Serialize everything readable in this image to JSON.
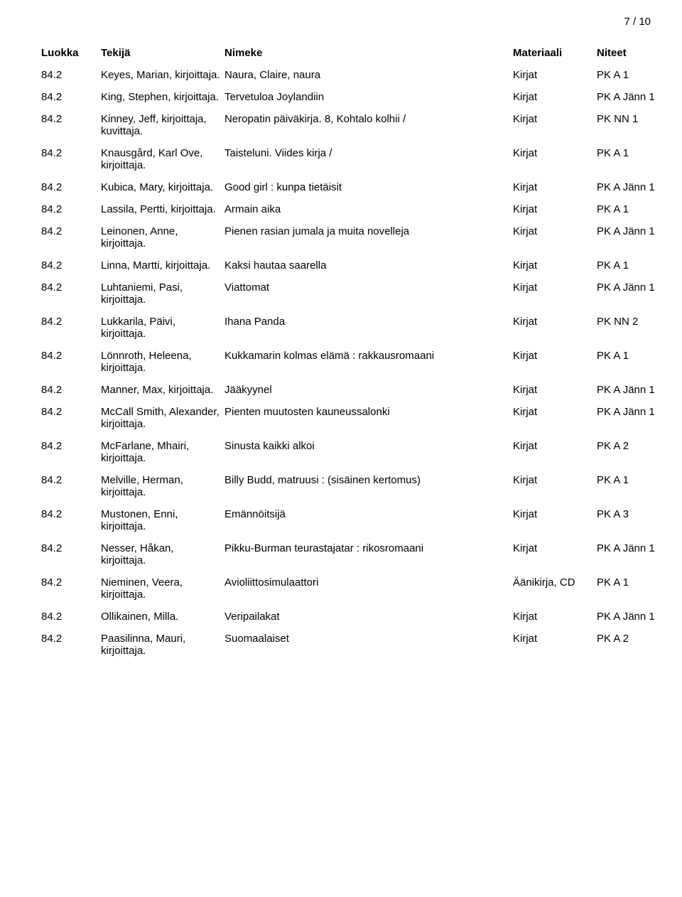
{
  "page_number": "7 / 10",
  "headers": {
    "luokka": "Luokka",
    "tekija": "Tekijä",
    "nimeke": "Nimeke",
    "materiaali": "Materiaali",
    "niteet": "Niteet"
  },
  "rows": [
    {
      "luokka": "84.2",
      "tekija": "Keyes, Marian, kirjoittaja.",
      "nimeke": "Naura, Claire, naura",
      "materiaali": "Kirjat",
      "niteet": "PK A 1"
    },
    {
      "luokka": "84.2",
      "tekija": "King, Stephen, kirjoittaja.",
      "nimeke": "Tervetuloa Joylandiin",
      "materiaali": "Kirjat",
      "niteet": "PK A Jänn 1"
    },
    {
      "luokka": "84.2",
      "tekija": "Kinney, Jeff, kirjoittaja, kuvittaja.",
      "nimeke": "Neropatin päiväkirja. 8, Kohtalo kolhii /",
      "materiaali": "Kirjat",
      "niteet": "PK NN 1"
    },
    {
      "luokka": "84.2",
      "tekija": "Knausgård, Karl Ove, kirjoittaja.",
      "nimeke": "Taisteluni. Viides kirja /",
      "materiaali": "Kirjat",
      "niteet": "PK A 1"
    },
    {
      "luokka": "84.2",
      "tekija": "Kubica, Mary, kirjoittaja.",
      "nimeke": "Good girl : kunpa tietäisit",
      "materiaali": "Kirjat",
      "niteet": "PK A Jänn 1"
    },
    {
      "luokka": "84.2",
      "tekija": "Lassila, Pertti, kirjoittaja.",
      "nimeke": "Armain aika",
      "materiaali": "Kirjat",
      "niteet": "PK A 1"
    },
    {
      "luokka": "84.2",
      "tekija": "Leinonen, Anne, kirjoittaja.",
      "nimeke": "Pienen rasian jumala ja muita novelleja",
      "materiaali": "Kirjat",
      "niteet": "PK A Jänn 1"
    },
    {
      "luokka": "84.2",
      "tekija": "Linna, Martti, kirjoittaja.",
      "nimeke": "Kaksi hautaa saarella",
      "materiaali": "Kirjat",
      "niteet": "PK A 1"
    },
    {
      "luokka": "84.2",
      "tekija": "Luhtaniemi, Pasi, kirjoittaja.",
      "nimeke": "Viattomat",
      "materiaali": "Kirjat",
      "niteet": "PK A Jänn 1"
    },
    {
      "luokka": "84.2",
      "tekija": "Lukkarila, Päivi, kirjoittaja.",
      "nimeke": "Ihana Panda",
      "materiaali": "Kirjat",
      "niteet": "PK NN 2"
    },
    {
      "luokka": "84.2",
      "tekija": "Lönnroth, Heleena, kirjoittaja.",
      "nimeke": "Kukkamarin kolmas elämä : rakkausromaani",
      "materiaali": "Kirjat",
      "niteet": "PK A 1"
    },
    {
      "luokka": "84.2",
      "tekija": "Manner, Max, kirjoittaja.",
      "nimeke": "Jääkyynel",
      "materiaali": "Kirjat",
      "niteet": "PK A Jänn 1"
    },
    {
      "luokka": "84.2",
      "tekija": "McCall Smith, Alexander, kirjoittaja.",
      "nimeke": "Pienten muutosten kauneussalonki",
      "materiaali": "Kirjat",
      "niteet": "PK A Jänn 1"
    },
    {
      "luokka": "84.2",
      "tekija": "McFarlane, Mhairi, kirjoittaja.",
      "nimeke": "Sinusta kaikki alkoi",
      "materiaali": "Kirjat",
      "niteet": "PK A 2"
    },
    {
      "luokka": "84.2",
      "tekija": "Melville, Herman, kirjoittaja.",
      "nimeke": "Billy Budd, matruusi : (sisäinen kertomus)",
      "materiaali": "Kirjat",
      "niteet": "PK A 1"
    },
    {
      "luokka": "84.2",
      "tekija": "Mustonen, Enni, kirjoittaja.",
      "nimeke": "Emännöitsijä",
      "materiaali": "Kirjat",
      "niteet": "PK A 3"
    },
    {
      "luokka": "84.2",
      "tekija": "Nesser, Håkan, kirjoittaja.",
      "nimeke": "Pikku-Burman teurastajatar : rikosromaani",
      "materiaali": "Kirjat",
      "niteet": "PK A Jänn 1"
    },
    {
      "luokka": "84.2",
      "tekija": "Nieminen, Veera, kirjoittaja.",
      "nimeke": "Avioliittosimulaattori",
      "materiaali": "Äänikirja, CD",
      "niteet": "PK A 1"
    },
    {
      "luokka": "84.2",
      "tekija": "Ollikainen, Milla.",
      "nimeke": "Veripailakat",
      "materiaali": "Kirjat",
      "niteet": "PK A Jänn 1"
    },
    {
      "luokka": "84.2",
      "tekija": "Paasilinna, Mauri, kirjoittaja.",
      "nimeke": "Suomaalaiset",
      "materiaali": "Kirjat",
      "niteet": "PK A 2"
    }
  ]
}
